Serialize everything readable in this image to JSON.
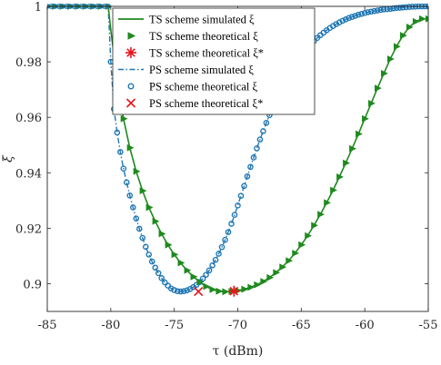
{
  "chart_data": {
    "type": "line",
    "xlabel": "τ (dBm)",
    "ylabel": "ξ",
    "xlim": [
      -85,
      -55
    ],
    "ylim": [
      0.89,
      1.0
    ],
    "xticks": [
      "-85",
      "-80",
      "-75",
      "-70",
      "-65",
      "-60",
      "-55"
    ],
    "yticks": [
      "0.9",
      "0.92",
      "0.94",
      "0.96",
      "0.98",
      "1"
    ],
    "grid": false,
    "legend_position": "top-center",
    "colors": {
      "ts": "#1e8a1e",
      "ps": "#1f77b4",
      "star": "#e8141a"
    },
    "legend": [
      {
        "label": "TS scheme simulated ξ",
        "style": "solid-line",
        "color": "#1e8a1e"
      },
      {
        "label": "TS scheme theoretical ξ",
        "style": "triangle-marker",
        "color": "#1e8a1e"
      },
      {
        "label": "TS scheme theoretical ξ*",
        "style": "star-marker",
        "color": "#e8141a"
      },
      {
        "label": "PS scheme simulated ξ",
        "style": "dashdot-line",
        "color": "#1f77b4"
      },
      {
        "label": "PS scheme theoretical ξ",
        "style": "circle-marker",
        "color": "#1f77b4"
      },
      {
        "label": "PS scheme theoretical ξ*",
        "style": "x-marker",
        "color": "#e8141a"
      }
    ],
    "series": [
      {
        "name": "TS scheme simulated ξ",
        "x": [
          -85,
          -84,
          -83,
          -82,
          -81,
          -80.2,
          -80,
          -79.5,
          -79,
          -78.5,
          -78,
          -77.5,
          -77,
          -76.5,
          -76,
          -75.5,
          -75,
          -74.5,
          -74,
          -73.5,
          -73,
          -72.5,
          -72,
          -71.5,
          -71,
          -70.5,
          -70,
          -69.5,
          -69,
          -68.5,
          -68,
          -67.5,
          -67,
          -66.5,
          -66,
          -65.5,
          -65,
          -64.5,
          -64,
          -63.5,
          -63,
          -62.5,
          -62,
          -61.5,
          -61,
          -60.5,
          -60,
          -59.5,
          -59,
          -58.5,
          -58,
          -57.5,
          -57,
          -56.5,
          -56,
          -55.5,
          -55
        ],
        "y": [
          1,
          1,
          1,
          1,
          1,
          1,
          0.9915,
          0.9735,
          0.9595,
          0.949,
          0.9405,
          0.9335,
          0.9275,
          0.9225,
          0.918,
          0.914,
          0.9105,
          0.9075,
          0.9048,
          0.9025,
          0.9006,
          0.899,
          0.8979,
          0.8973,
          0.8971,
          0.8972,
          0.8975,
          0.898,
          0.8987,
          0.8996,
          0.9008,
          0.9022,
          0.904,
          0.906,
          0.9083,
          0.911,
          0.914,
          0.9173,
          0.921,
          0.925,
          0.9292,
          0.9337,
          0.9385,
          0.9435,
          0.9487,
          0.954,
          0.9595,
          0.965,
          0.9705,
          0.9758,
          0.981,
          0.9855,
          0.9895,
          0.9925,
          0.9945,
          0.9955,
          0.9955
        ]
      },
      {
        "name": "PS scheme simulated ξ",
        "x": [
          -85,
          -84,
          -83,
          -82,
          -81,
          -80.2,
          -80,
          -79.75,
          -79.5,
          -79.25,
          -79,
          -78.75,
          -78.5,
          -78.25,
          -78,
          -77.75,
          -77.5,
          -77.25,
          -77,
          -76.75,
          -76.5,
          -76.25,
          -76,
          -75.75,
          -75.5,
          -75.25,
          -75,
          -74.75,
          -74.5,
          -74.25,
          -74,
          -73.75,
          -73.5,
          -73.25,
          -73,
          -72.75,
          -72.5,
          -72.25,
          -72,
          -71.75,
          -71.5,
          -71.25,
          -71,
          -70.75,
          -70.5,
          -70.25,
          -70,
          -69.75,
          -69.5,
          -69.25,
          -69,
          -68.75,
          -68.5,
          -68.25,
          -68,
          -67.75,
          -67.5,
          -67.25,
          -67,
          -66.75,
          -66.5,
          -66.25,
          -66,
          -65.75,
          -65.5,
          -65.25,
          -65,
          -64.75,
          -64.5,
          -64.25,
          -64,
          -63.75,
          -63.5,
          -63.25,
          -63,
          -62.75,
          -62.5,
          -62.25,
          -62,
          -61.75,
          -61.5,
          -61.25,
          -61,
          -60.75,
          -60.5,
          -60.25,
          -60,
          -59.75,
          -59.5,
          -59.25,
          -59,
          -58.75,
          -58.5,
          -58.25,
          -58,
          -57.75,
          -57.5,
          -57.25,
          -57,
          -56.75,
          -56.5,
          -56.25,
          -56,
          -55.75,
          -55.5,
          -55.25,
          -55
        ],
        "y": [
          1,
          1,
          1,
          1,
          1,
          1,
          0.98,
          0.963,
          0.9545,
          0.9475,
          0.9415,
          0.9365,
          0.9318,
          0.9275,
          0.9235,
          0.9198,
          0.9165,
          0.9133,
          0.9105,
          0.908,
          0.9058,
          0.9038,
          0.902,
          0.9005,
          0.8993,
          0.8983,
          0.8977,
          0.8973,
          0.8972,
          0.8973,
          0.8976,
          0.8981,
          0.8988,
          0.8996,
          0.9006,
          0.9018,
          0.9032,
          0.9048,
          0.9066,
          0.9086,
          0.9108,
          0.9132,
          0.9158,
          0.9186,
          0.9216,
          0.9248,
          0.9282,
          0.9317,
          0.9352,
          0.9387,
          0.9421,
          0.9455,
          0.9488,
          0.952,
          0.955,
          0.958,
          0.9608,
          0.9635,
          0.9661,
          0.9686,
          0.9709,
          0.9731,
          0.9752,
          0.9771,
          0.9789,
          0.9806,
          0.9822,
          0.9837,
          0.985,
          0.9863,
          0.9875,
          0.9886,
          0.9896,
          0.9905,
          0.9914,
          0.9922,
          0.9929,
          0.9936,
          0.9942,
          0.9948,
          0.9953,
          0.9958,
          0.9962,
          0.9966,
          0.997,
          0.9973,
          0.9976,
          0.9979,
          0.9981,
          0.9983,
          0.9985,
          0.9987,
          0.9989,
          0.999,
          0.9991,
          0.9993,
          0.9994,
          0.9995,
          0.9996,
          0.9997,
          0.9998,
          0.9999,
          0.9999,
          1,
          1,
          1,
          1
        ]
      }
    ],
    "optimum_points": [
      {
        "name": "TS scheme theoretical ξ*",
        "x": -70.3,
        "y": 0.8973
      },
      {
        "name": "PS scheme theoretical ξ*",
        "x": -73.1,
        "y": 0.8972
      }
    ]
  }
}
